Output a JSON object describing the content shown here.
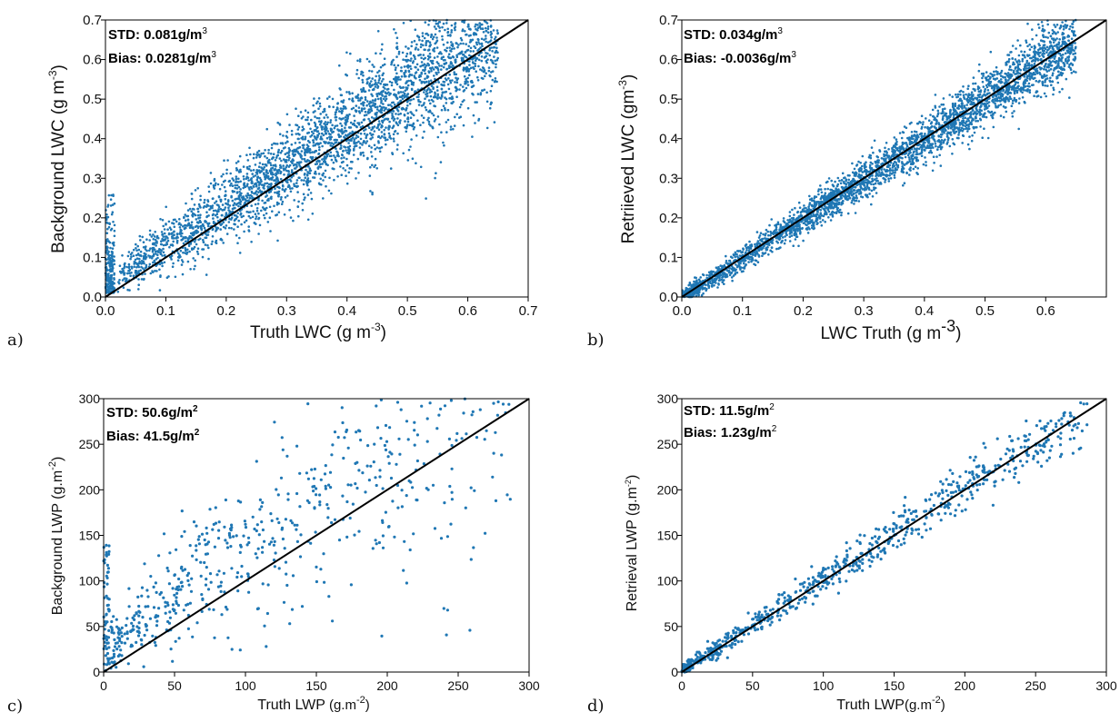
{
  "chart_data": [
    {
      "type": "scatter",
      "panel_label": "a)",
      "xlabel": "Truth LWC (g m",
      "xlabel_sup": "-3",
      "xlabel_tail": ")",
      "ylabel": "Background LWC (g m",
      "ylabel_sup": "-3",
      "ylabel_tail": ")",
      "xlim": [
        0,
        0.7
      ],
      "ylim": [
        0,
        0.7
      ],
      "xticks": [
        "0.0",
        "0.1",
        "0.2",
        "0.3",
        "0.4",
        "0.5",
        "0.6",
        "0.7"
      ],
      "yticks": [
        "0.0",
        "0.1",
        "0.2",
        "0.3",
        "0.4",
        "0.5",
        "0.6",
        "0.7"
      ],
      "stat_std": "STD: 0.081g/m",
      "stat_std_sup": "3",
      "stat_bias": "Bias: 0.0281g/m",
      "stat_bias_sup": "3",
      "reference_line": "1:1",
      "n_points": 3400,
      "bias": 0.0281,
      "std": 0.081,
      "point_color": "#1f77b4"
    },
    {
      "type": "scatter",
      "panel_label": "b)",
      "xlabel": "LWC Truth (g m",
      "xlabel_sup": "-3",
      "xlabel_tail": ")",
      "ylabel": "Retriieved LWC (gm",
      "ylabel_sup": "-3",
      "ylabel_tail": ")",
      "xlim": [
        0,
        0.7
      ],
      "ylim": [
        0,
        0.7
      ],
      "xticks": [
        "0.0",
        "0.1",
        "0.2",
        "0.3",
        "0.4",
        "0.5",
        "0.6"
      ],
      "yticks": [
        "0.0",
        "0.1",
        "0.2",
        "0.3",
        "0.4",
        "0.5",
        "0.6",
        "0.7"
      ],
      "stat_std": "STD: 0.034g/m",
      "stat_std_sup": "3",
      "stat_bias": "Bias: -0.0036g/m",
      "stat_bias_sup": "3",
      "reference_line": "1:1",
      "n_points": 3400,
      "bias": -0.0036,
      "std": 0.034,
      "point_color": "#1f77b4"
    },
    {
      "type": "scatter",
      "panel_label": "c)",
      "xlabel": "Truth LWP",
      "xlabel_unit": "(g.m",
      "xlabel_sup": "-2",
      "xlabel_tail": ")",
      "ylabel": "Background LWP (g.m",
      "ylabel_sup": "-2",
      "ylabel_tail": ")",
      "xlim": [
        0,
        300
      ],
      "ylim": [
        0,
        300
      ],
      "xticks": [
        "0",
        "50",
        "100",
        "150",
        "200",
        "250",
        "300"
      ],
      "yticks": [
        "0",
        "50",
        "100",
        "150",
        "200",
        "250",
        "300"
      ],
      "stat_std": "STD: 50.6g/m",
      "stat_std_sup": "2",
      "stat_bias": "Bias: 41.5g/m",
      "stat_bias_sup": "2",
      "reference_line": "1:1",
      "n_points": 700,
      "bias": 41.5,
      "std": 50.6,
      "point_color": "#1f77b4"
    },
    {
      "type": "scatter",
      "panel_label": "d)",
      "xlabel": "Truth LWP",
      "xlabel_unit": "(g.m",
      "xlabel_sup": "-2",
      "xlabel_tail": ")",
      "ylabel": "Retrieval LWP (g.m",
      "ylabel_sup": "-2",
      "ylabel_tail": ")",
      "xlim": [
        0,
        300
      ],
      "ylim": [
        0,
        300
      ],
      "xticks": [
        "0",
        "50",
        "100",
        "150",
        "200",
        "250",
        "300"
      ],
      "yticks": [
        "0",
        "50",
        "100",
        "150",
        "200",
        "250",
        "300"
      ],
      "stat_std": "STD: 11.5g/m",
      "stat_std_sup": "2",
      "stat_bias": "Bias: 1.23g/m",
      "stat_bias_sup": "2",
      "reference_line": "1:1",
      "n_points": 750,
      "bias": 1.23,
      "std": 11.5,
      "point_color": "#1f77b4"
    }
  ]
}
